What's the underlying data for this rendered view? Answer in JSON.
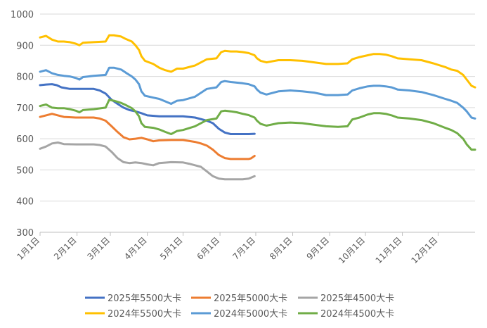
{
  "chart_data": {
    "type": "line",
    "title": "",
    "xlabel": "",
    "ylabel": "",
    "ylim": [
      300,
      1000
    ],
    "yticks": [
      300,
      400,
      500,
      600,
      700,
      800,
      900,
      1000
    ],
    "xlim": [
      0,
      365
    ],
    "xtick_labels": [
      "1月1日",
      "2月1日",
      "3月1日",
      "4月1日",
      "5月1日",
      "6月1日",
      "7月1日",
      "8月1日",
      "9月1日",
      "10月1日",
      "11月1日",
      "12月1日"
    ],
    "xtick_days": [
      0,
      31,
      59,
      90,
      120,
      151,
      181,
      212,
      243,
      273,
      304,
      334
    ],
    "grid": "horizontal",
    "legend_position": "bottom",
    "series": [
      {
        "name": "2025年5500大卡",
        "color": "#4472C4",
        "x": [
          0,
          5,
          10,
          14,
          18,
          25,
          35,
          45,
          50,
          55,
          60,
          65,
          70,
          75,
          80,
          85,
          90,
          100,
          110,
          120,
          130,
          140,
          145,
          150,
          155,
          160,
          165,
          170,
          175,
          180
        ],
        "y": [
          772,
          774,
          775,
          772,
          765,
          760,
          760,
          760,
          755,
          745,
          725,
          712,
          700,
          692,
          688,
          682,
          675,
          672,
          672,
          672,
          668,
          658,
          650,
          632,
          620,
          615,
          615,
          615,
          615,
          616
        ]
      },
      {
        "name": "2025年5000大卡",
        "color": "#ED7D31",
        "x": [
          0,
          5,
          10,
          15,
          20,
          30,
          40,
          45,
          50,
          55,
          60,
          65,
          70,
          75,
          80,
          85,
          90,
          95,
          100,
          110,
          120,
          130,
          135,
          140,
          145,
          150,
          155,
          160,
          165,
          170,
          175,
          177,
          180
        ],
        "y": [
          670,
          675,
          680,
          675,
          670,
          668,
          668,
          668,
          665,
          658,
          640,
          622,
          605,
          598,
          600,
          603,
          598,
          592,
          595,
          596,
          596,
          590,
          585,
          578,
          565,
          548,
          538,
          535,
          535,
          535,
          535,
          537,
          545
        ]
      },
      {
        "name": "2025年4500大卡",
        "color": "#A5A5A5",
        "x": [
          0,
          5,
          10,
          15,
          20,
          30,
          40,
          45,
          50,
          55,
          60,
          65,
          70,
          75,
          80,
          85,
          90,
          95,
          100,
          110,
          120,
          125,
          130,
          135,
          140,
          145,
          150,
          155,
          160,
          165,
          170,
          175,
          180
        ],
        "y": [
          568,
          575,
          585,
          588,
          583,
          582,
          582,
          582,
          580,
          575,
          558,
          538,
          525,
          522,
          524,
          522,
          518,
          515,
          522,
          525,
          524,
          520,
          515,
          510,
          495,
          480,
          472,
          470,
          470,
          470,
          470,
          472,
          480
        ]
      },
      {
        "name": "2024年5500大卡",
        "color": "#FFC000",
        "x": [
          0,
          5,
          10,
          15,
          20,
          25,
          30,
          33,
          36,
          45,
          55,
          58,
          62,
          68,
          72,
          77,
          80,
          83,
          85,
          88,
          95,
          100,
          105,
          110,
          115,
          120,
          130,
          140,
          148,
          152,
          155,
          160,
          165,
          170,
          175,
          180,
          182,
          185,
          190,
          200,
          210,
          220,
          230,
          240,
          250,
          258,
          262,
          268,
          275,
          280,
          285,
          290,
          295,
          300,
          310,
          320,
          330,
          340,
          345,
          350,
          355,
          358,
          362,
          365
        ],
        "y": [
          925,
          930,
          918,
          912,
          912,
          910,
          905,
          900,
          908,
          910,
          912,
          932,
          932,
          928,
          920,
          912,
          900,
          885,
          865,
          850,
          840,
          828,
          820,
          815,
          825,
          825,
          835,
          855,
          858,
          878,
          882,
          880,
          880,
          878,
          875,
          868,
          858,
          850,
          845,
          852,
          852,
          850,
          845,
          840,
          840,
          842,
          855,
          862,
          868,
          872,
          872,
          870,
          865,
          858,
          855,
          852,
          842,
          830,
          822,
          818,
          805,
          790,
          770,
          765
        ]
      },
      {
        "name": "2024年5000大卡",
        "color": "#5B9BD5",
        "x": [
          0,
          5,
          10,
          15,
          20,
          25,
          30,
          33,
          36,
          45,
          55,
          58,
          62,
          68,
          72,
          77,
          80,
          83,
          85,
          88,
          95,
          100,
          105,
          110,
          115,
          120,
          130,
          140,
          148,
          152,
          155,
          160,
          165,
          170,
          175,
          180,
          182,
          185,
          190,
          200,
          210,
          220,
          230,
          240,
          250,
          258,
          262,
          268,
          275,
          280,
          285,
          290,
          295,
          300,
          310,
          320,
          330,
          340,
          345,
          350,
          355,
          358,
          362,
          365
        ],
        "y": [
          815,
          820,
          810,
          805,
          802,
          800,
          795,
          790,
          798,
          802,
          805,
          828,
          828,
          822,
          812,
          800,
          790,
          775,
          752,
          738,
          732,
          728,
          720,
          712,
          722,
          724,
          735,
          760,
          765,
          782,
          785,
          782,
          780,
          778,
          775,
          768,
          758,
          748,
          742,
          752,
          755,
          752,
          748,
          740,
          740,
          742,
          755,
          762,
          768,
          770,
          770,
          768,
          765,
          758,
          755,
          750,
          740,
          728,
          722,
          715,
          700,
          688,
          668,
          665
        ]
      },
      {
        "name": "2024年4500大卡",
        "color": "#70AD47",
        "x": [
          0,
          5,
          10,
          15,
          20,
          25,
          30,
          33,
          36,
          45,
          55,
          58,
          62,
          68,
          72,
          77,
          80,
          83,
          85,
          88,
          95,
          100,
          105,
          110,
          115,
          120,
          130,
          140,
          148,
          152,
          155,
          160,
          165,
          170,
          175,
          180,
          182,
          185,
          190,
          200,
          210,
          220,
          230,
          240,
          250,
          258,
          262,
          268,
          275,
          280,
          285,
          290,
          295,
          300,
          310,
          320,
          330,
          340,
          345,
          350,
          355,
          358,
          362,
          365
        ],
        "y": [
          705,
          710,
          700,
          698,
          698,
          695,
          690,
          685,
          692,
          695,
          700,
          725,
          722,
          715,
          708,
          698,
          688,
          672,
          650,
          638,
          635,
          630,
          622,
          615,
          625,
          628,
          640,
          660,
          665,
          688,
          690,
          688,
          685,
          680,
          676,
          668,
          658,
          648,
          642,
          650,
          652,
          650,
          645,
          640,
          638,
          640,
          662,
          668,
          678,
          682,
          682,
          680,
          675,
          668,
          665,
          660,
          650,
          635,
          628,
          618,
          600,
          582,
          565,
          565
        ]
      }
    ]
  }
}
